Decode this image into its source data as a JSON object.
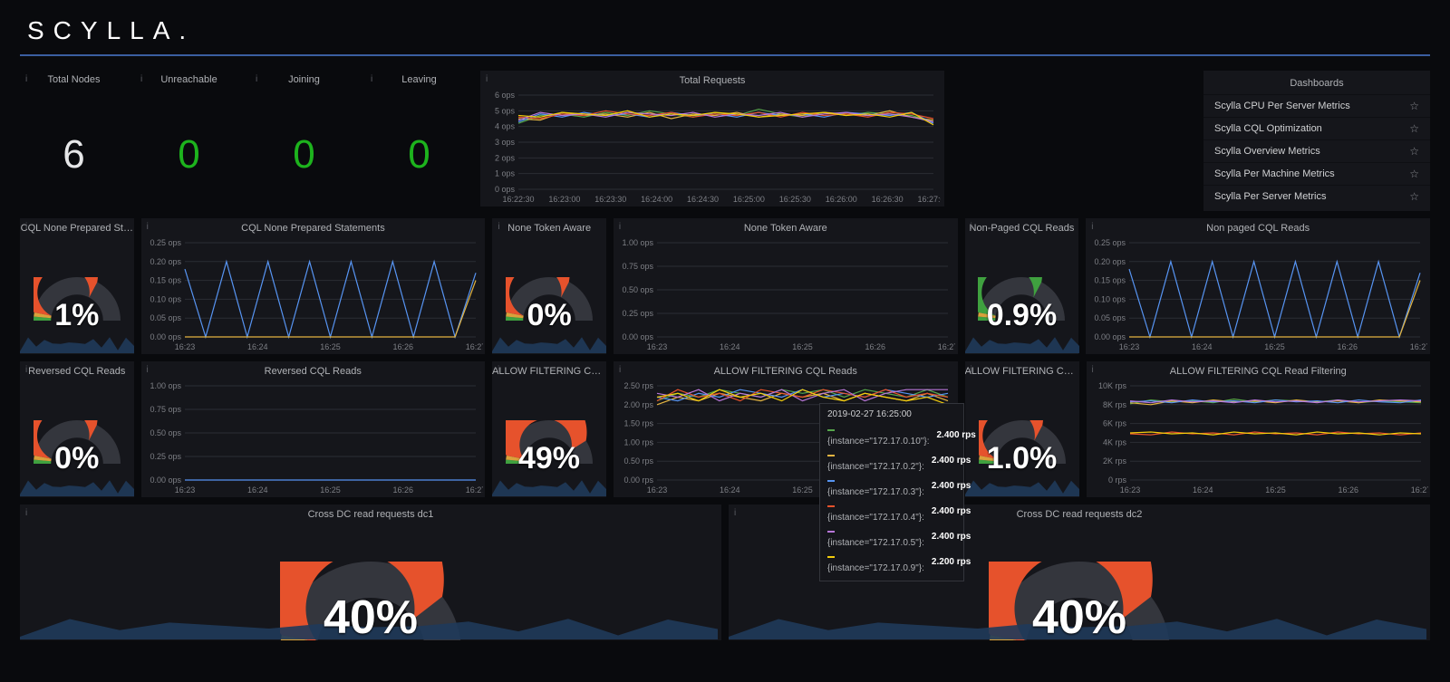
{
  "brand": "SCYLLA.",
  "colors": {
    "bg": "#090a0d",
    "panel": "#15161b",
    "grid": "#2b2d34",
    "tick": "#7d7f85",
    "white": "#e6e7e8",
    "green": "#1db31d",
    "series": [
      "#56a64b",
      "#e3b441",
      "#5794f2",
      "#e6522c",
      "#b877d9",
      "#f2cc0c"
    ],
    "sparkFill": "#1f3a5a",
    "hr": "#3a5ea0"
  },
  "stats": [
    {
      "label": "Total Nodes",
      "value": "6",
      "cls": "stat-white"
    },
    {
      "label": "Unreachable",
      "value": "0",
      "cls": "stat-green"
    },
    {
      "label": "Joining",
      "value": "0",
      "cls": "stat-green"
    },
    {
      "label": "Leaving",
      "value": "0",
      "cls": "stat-green"
    }
  ],
  "dashboards": {
    "title": "Dashboards",
    "items": [
      "Scylla CPU Per Server Metrics",
      "Scylla CQL Optimization",
      "Scylla Overview Metrics",
      "Scylla Per Machine Metrics",
      "Scylla Per Server Metrics"
    ]
  },
  "total_requests": {
    "title": "Total Requests",
    "unit": "ops",
    "ymax": 6,
    "ystep": 1,
    "xticks": [
      "16:22:30",
      "16:23:00",
      "16:23:30",
      "16:24:00",
      "16:24:30",
      "16:25:00",
      "16:25:30",
      "16:26:00",
      "16:26:30",
      "16:27:00"
    ],
    "series": [
      {
        "color": "#56a64b",
        "y": [
          4.2,
          4.7,
          4.8,
          4.6,
          4.9,
          4.7,
          5.0,
          4.8,
          4.6,
          4.9,
          4.7,
          5.1,
          4.8,
          4.6,
          4.9,
          4.7,
          4.9,
          4.8,
          4.7,
          4.3
        ]
      },
      {
        "color": "#e3b441",
        "y": [
          4.5,
          4.4,
          4.9,
          4.7,
          4.8,
          4.6,
          4.9,
          4.5,
          4.8,
          4.7,
          4.9,
          4.6,
          4.8,
          4.7,
          4.9,
          4.8,
          4.7,
          5.0,
          4.6,
          4.4
        ]
      },
      {
        "color": "#5794f2",
        "y": [
          4.3,
          4.8,
          4.6,
          4.9,
          4.7,
          4.8,
          4.6,
          4.9,
          4.7,
          4.8,
          4.6,
          4.9,
          4.7,
          4.8,
          4.6,
          4.9,
          4.8,
          4.7,
          4.9,
          4.2
        ]
      },
      {
        "color": "#e6522c",
        "y": [
          4.6,
          4.5,
          4.8,
          4.7,
          5.0,
          4.8,
          4.7,
          4.9,
          4.6,
          4.8,
          4.7,
          4.9,
          4.6,
          4.9,
          4.7,
          4.8,
          4.6,
          4.9,
          4.8,
          4.5
        ]
      },
      {
        "color": "#b877d9",
        "y": [
          4.4,
          4.9,
          4.7,
          4.8,
          4.6,
          4.9,
          4.8,
          4.7,
          4.9,
          4.6,
          4.8,
          4.7,
          4.9,
          4.6,
          4.8,
          4.9,
          4.7,
          4.8,
          4.6,
          4.3
        ]
      },
      {
        "color": "#f2cc0c",
        "y": [
          4.7,
          4.6,
          4.9,
          4.8,
          4.7,
          5.0,
          4.6,
          4.8,
          4.7,
          4.9,
          4.8,
          4.6,
          4.7,
          4.8,
          4.9,
          4.7,
          4.8,
          4.6,
          4.9,
          4.1
        ]
      }
    ]
  },
  "xticks_short": [
    "16:23",
    "16:24",
    "16:25",
    "16:26",
    "16:27"
  ],
  "gauges_row1": [
    {
      "title": "CQL None Prepared St…",
      "value": "1%",
      "pct": 0.01,
      "accent": "#e6522c"
    },
    {
      "title": "None Token Aware",
      "value": "0%",
      "pct": 0.0,
      "accent": "#e6522c"
    },
    {
      "title": "Non-Paged CQL Reads",
      "value": "0.9%",
      "pct": 0.009,
      "accent": "#56a64b"
    }
  ],
  "charts_row1": [
    {
      "title": "CQL None Prepared Statements",
      "unit": "ops",
      "ymax": 0.25,
      "ystep": 0.05,
      "series": [
        {
          "color": "#5794f2",
          "y": [
            0.18,
            0,
            0.2,
            0,
            0.2,
            0,
            0.2,
            0,
            0.2,
            0,
            0.2,
            0,
            0.2,
            0,
            0.17
          ]
        },
        {
          "color": "#e3b441",
          "y": [
            0,
            0,
            0,
            0,
            0,
            0,
            0,
            0,
            0,
            0,
            0,
            0,
            0,
            0,
            0.15
          ]
        }
      ]
    },
    {
      "title": "None Token Aware",
      "unit": "ops",
      "ymax": 1.0,
      "ystep": 0.25,
      "series": []
    },
    {
      "title": "Non paged CQL Reads",
      "unit": "ops",
      "ymax": 0.25,
      "ystep": 0.05,
      "series": [
        {
          "color": "#5794f2",
          "y": [
            0.18,
            0,
            0.2,
            0,
            0.2,
            0,
            0.2,
            0,
            0.2,
            0,
            0.2,
            0,
            0.2,
            0,
            0.17
          ]
        },
        {
          "color": "#e3b441",
          "y": [
            0,
            0,
            0,
            0,
            0,
            0,
            0,
            0,
            0,
            0,
            0,
            0,
            0,
            0,
            0.15
          ]
        }
      ]
    }
  ],
  "gauges_row2": [
    {
      "title": "Reversed CQL Reads",
      "value": "0%",
      "pct": 0.0,
      "accent": "#e6522c"
    },
    {
      "title": "ALLOW FILTERING CQ…",
      "value": "49%",
      "pct": 0.49,
      "accent": "#e6522c"
    },
    {
      "title": "ALLOW FILTERING CQ…",
      "value": "1.0%",
      "pct": 0.01,
      "accent": "#e6522c"
    }
  ],
  "charts_row2": [
    {
      "title": "Reversed CQL Reads",
      "unit": "ops",
      "ymax": 1.0,
      "ystep": 0.25,
      "series": [
        {
          "color": "#5794f2",
          "y": [
            0,
            0,
            0,
            0,
            0,
            0,
            0,
            0,
            0,
            0,
            0,
            0,
            0,
            0,
            0
          ]
        }
      ]
    },
    {
      "title": "ALLOW FILTERING CQL Reads",
      "unit": "rps",
      "ymax": 2.5,
      "ystep": 0.5,
      "series": [
        {
          "color": "#56a64b",
          "y": [
            2.1,
            2.3,
            2.2,
            2.4,
            2.3,
            2.2,
            2.4,
            2.3,
            2.4,
            2.2,
            2.4,
            2.3,
            2.2,
            2.4,
            2.2
          ]
        },
        {
          "color": "#e3b441",
          "y": [
            2.0,
            2.2,
            2.1,
            2.3,
            2.2,
            2.1,
            2.3,
            2.2,
            2.3,
            2.1,
            2.3,
            2.2,
            2.1,
            2.3,
            2.1
          ]
        },
        {
          "color": "#5794f2",
          "y": [
            2.2,
            2.1,
            2.3,
            2.2,
            2.4,
            2.3,
            2.2,
            2.4,
            2.2,
            2.3,
            2.2,
            2.4,
            2.3,
            2.2,
            2.3
          ]
        },
        {
          "color": "#e6522c",
          "y": [
            2.1,
            2.4,
            2.2,
            2.3,
            2.1,
            2.4,
            2.3,
            2.2,
            2.4,
            2.3,
            2.2,
            2.4,
            2.2,
            2.3,
            2.2
          ]
        },
        {
          "color": "#b877d9",
          "y": [
            2.3,
            2.2,
            2.4,
            2.1,
            2.3,
            2.2,
            2.4,
            2.1,
            2.3,
            2.4,
            2.1,
            2.3,
            2.4,
            2.4,
            2.4
          ]
        },
        {
          "color": "#f2cc0c",
          "y": [
            2.2,
            2.3,
            2.1,
            2.4,
            2.2,
            2.3,
            2.1,
            2.4,
            2.2,
            2.1,
            2.3,
            2.2,
            2.1,
            2.2,
            2.0
          ]
        }
      ]
    },
    {
      "title": "ALLOW FILTERING CQL Read Filtering",
      "unit": "rps",
      "ymax": 10000,
      "ystep": 2000,
      "yticks_fmt": "K",
      "series": [
        {
          "color": "#56a64b",
          "y": [
            8100,
            8500,
            8300,
            8400,
            8200,
            8600,
            8300,
            8500,
            8400,
            8300,
            8500,
            8200,
            8400,
            8300,
            8200
          ]
        },
        {
          "color": "#e3b441",
          "y": [
            8200,
            8000,
            8400,
            8200,
            8500,
            8300,
            8400,
            8200,
            8500,
            8300,
            8400,
            8200,
            8500,
            8400,
            8300
          ]
        },
        {
          "color": "#5794f2",
          "y": [
            8300,
            8400,
            8200,
            8500,
            8300,
            8400,
            8200,
            8500,
            8300,
            8400,
            8200,
            8500,
            8300,
            8200,
            8500
          ]
        },
        {
          "color": "#e6522c",
          "y": [
            4900,
            4800,
            5100,
            4900,
            5000,
            4800,
            5100,
            4900,
            5000,
            4800,
            5100,
            4900,
            5000,
            4800,
            5000
          ]
        },
        {
          "color": "#b877d9",
          "y": [
            8400,
            8200,
            8500,
            8300,
            8400,
            8200,
            8500,
            8300,
            8400,
            8200,
            8500,
            8300,
            8400,
            8500,
            8400
          ]
        },
        {
          "color": "#f2cc0c",
          "y": [
            5000,
            5100,
            4900,
            5000,
            4800,
            5100,
            4900,
            5000,
            4800,
            5100,
            4900,
            5000,
            4800,
            5000,
            4900
          ]
        }
      ]
    }
  ],
  "tooltip": {
    "title": "2019-02-27 16:25:00",
    "rows": [
      {
        "color": "#56a64b",
        "label": "{instance=\"172.17.0.10\"}:",
        "val": "2.400 rps"
      },
      {
        "color": "#e3b441",
        "label": "{instance=\"172.17.0.2\"}:",
        "val": "2.400 rps"
      },
      {
        "color": "#5794f2",
        "label": "{instance=\"172.17.0.3\"}:",
        "val": "2.400 rps"
      },
      {
        "color": "#e6522c",
        "label": "{instance=\"172.17.0.4\"}:",
        "val": "2.400 rps"
      },
      {
        "color": "#b877d9",
        "label": "{instance=\"172.17.0.5\"}:",
        "val": "2.400 rps"
      },
      {
        "color": "#f2cc0c",
        "label": "{instance=\"172.17.0.9\"}:",
        "val": "2.200 rps"
      }
    ]
  },
  "cross_dc": [
    {
      "title": "Cross DC read requests dc1",
      "value": "40%",
      "pct": 0.4
    },
    {
      "title": "Cross DC read requests dc2",
      "value": "40%",
      "pct": 0.4
    }
  ]
}
